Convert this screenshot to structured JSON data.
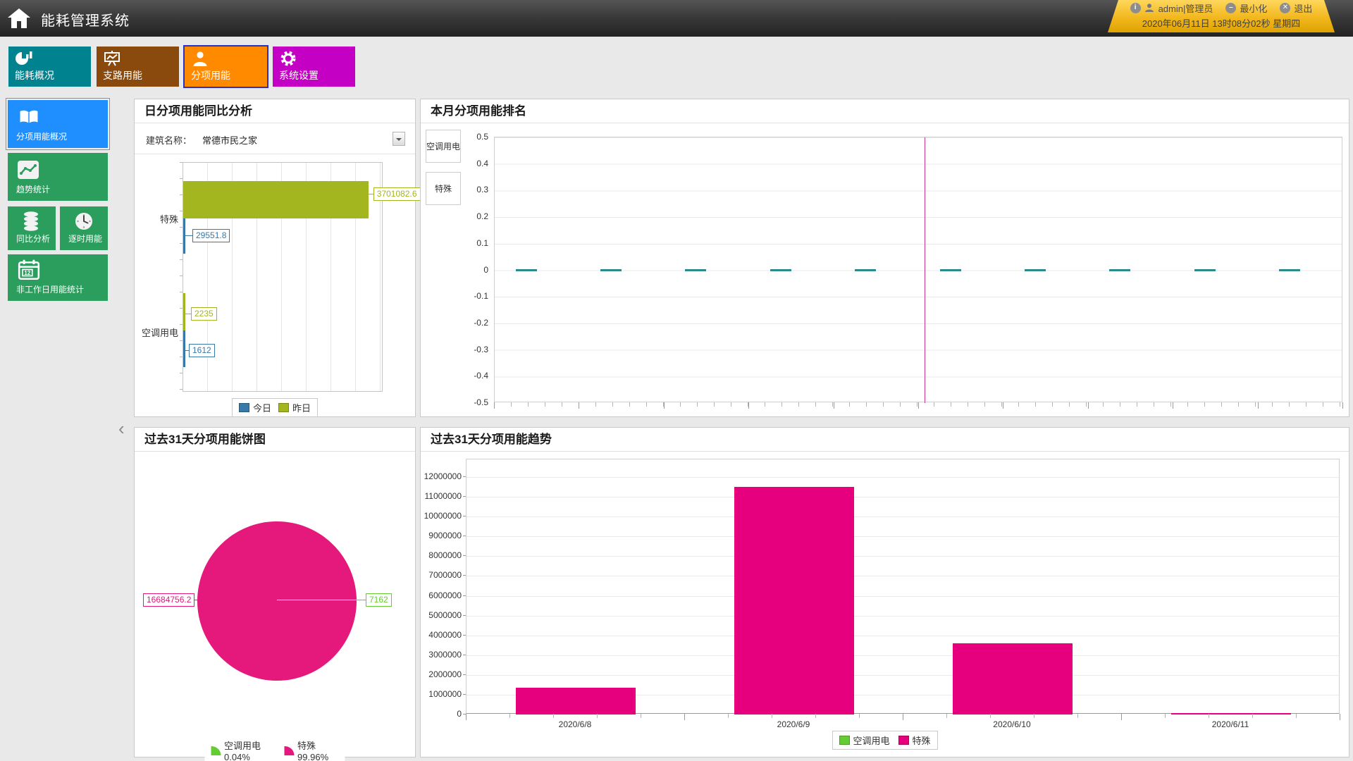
{
  "header": {
    "title": "能耗管理系统",
    "user": {
      "name": "admin|管理员",
      "minimize_label": "最小化",
      "logout_label": "退出",
      "datetime": "2020年06月11日 13时08分02秒 星期四"
    }
  },
  "nav": {
    "tabs": [
      {
        "label": "能耗概况",
        "color": "#00838f",
        "icon": "donut-chart-icon",
        "selected": false
      },
      {
        "label": "支路用能",
        "color": "#8a4a0e",
        "icon": "presentation-chart-icon",
        "selected": false
      },
      {
        "label": "分项用能",
        "color": "#ff8a00",
        "icon": "person-icon",
        "selected": true
      },
      {
        "label": "系统设置",
        "color": "#c400c4",
        "icon": "gear-icon",
        "selected": false
      }
    ]
  },
  "sidebar": {
    "items": [
      {
        "label": "分项用能概况",
        "color": "#1f8fff",
        "icon": "book-icon",
        "selected": true
      },
      {
        "label": "趋势统计",
        "color": "#2b9d5d",
        "icon": "trend-line-icon",
        "selected": false
      },
      {
        "label": "同比分析",
        "color": "#2b9d5d",
        "icon": "database-icon",
        "selected": false
      },
      {
        "label": "逐时用能",
        "color": "#2b9d5d",
        "icon": "clock-icon",
        "selected": false
      },
      {
        "label": "非工作日用能统计",
        "color": "#2b9d5d",
        "icon": "calendar-icon",
        "calendar_number": "12",
        "selected": false
      }
    ]
  },
  "ui": {
    "collapse_chevron": "‹"
  },
  "panels": {
    "daily_compare": {
      "title": "日分项用能同比分析",
      "building_label": "建筑名称：",
      "building_value": "常德市民之家"
    },
    "monthly_ranking": {
      "title": "本月分项用能排名"
    },
    "pie31": {
      "title": "过去31天分项用能饼图"
    },
    "trend31": {
      "title": "过去31天分项用能趋势"
    }
  },
  "chart_data": [
    {
      "id": "daily_compare",
      "type": "bar",
      "orientation": "horizontal",
      "title": "日分项用能同比分析",
      "categories": [
        "特殊",
        "空调用电"
      ],
      "series": [
        {
          "name": "今日",
          "color": "#3779a8",
          "values": [
            29551.8,
            1612
          ]
        },
        {
          "name": "昨日",
          "color": "#a3b51f",
          "values": [
            3701082.6,
            2235
          ]
        }
      ],
      "xlim": [
        0,
        4000000
      ],
      "grid": "vertical",
      "legend_position": "bottom"
    },
    {
      "id": "monthly_ranking",
      "type": "bar",
      "title": "本月分项用能排名",
      "series_buttons": [
        "空调用电",
        "特殊"
      ],
      "categories": [
        "",
        "",
        "",
        "",
        "",
        "",
        "",
        "",
        "",
        ""
      ],
      "values": [
        0,
        0,
        0,
        0,
        0,
        0,
        0,
        0,
        0,
        0
      ],
      "bar_color": "#2a8a8f",
      "ylim": [
        -0.5,
        0.5
      ],
      "ytick_step": 0.1,
      "grid": "horizontal",
      "cursor_line": {
        "color": "#cc3399",
        "x_fraction": 0.507
      },
      "legend_position": "none"
    },
    {
      "id": "pie31",
      "type": "pie",
      "title": "过去31天分项用能饼图",
      "slices": [
        {
          "label": "空调用电",
          "value": 7162,
          "percent": "0.04%",
          "color": "#66cc33"
        },
        {
          "label": "特殊",
          "value": 16684756.2,
          "percent": "99.96%",
          "color": "#e5187c"
        }
      ],
      "legend_position": "bottom"
    },
    {
      "id": "trend31",
      "type": "bar",
      "title": "过去31天分项用能趋势",
      "categories": [
        "2020/6/8",
        "2020/6/9",
        "2020/6/10",
        "2020/6/11"
      ],
      "series": [
        {
          "name": "空调用电",
          "color": "#66cc33",
          "values": [
            0,
            0,
            0,
            0
          ]
        },
        {
          "name": "特殊",
          "color": "#e6007e",
          "values": [
            1350000,
            11500000,
            3600000,
            50000
          ]
        }
      ],
      "ylim": [
        0,
        12900000
      ],
      "ytick_max": 12000000,
      "ytick_step": 1000000,
      "grid": "horizontal",
      "legend_position": "bottom"
    }
  ]
}
